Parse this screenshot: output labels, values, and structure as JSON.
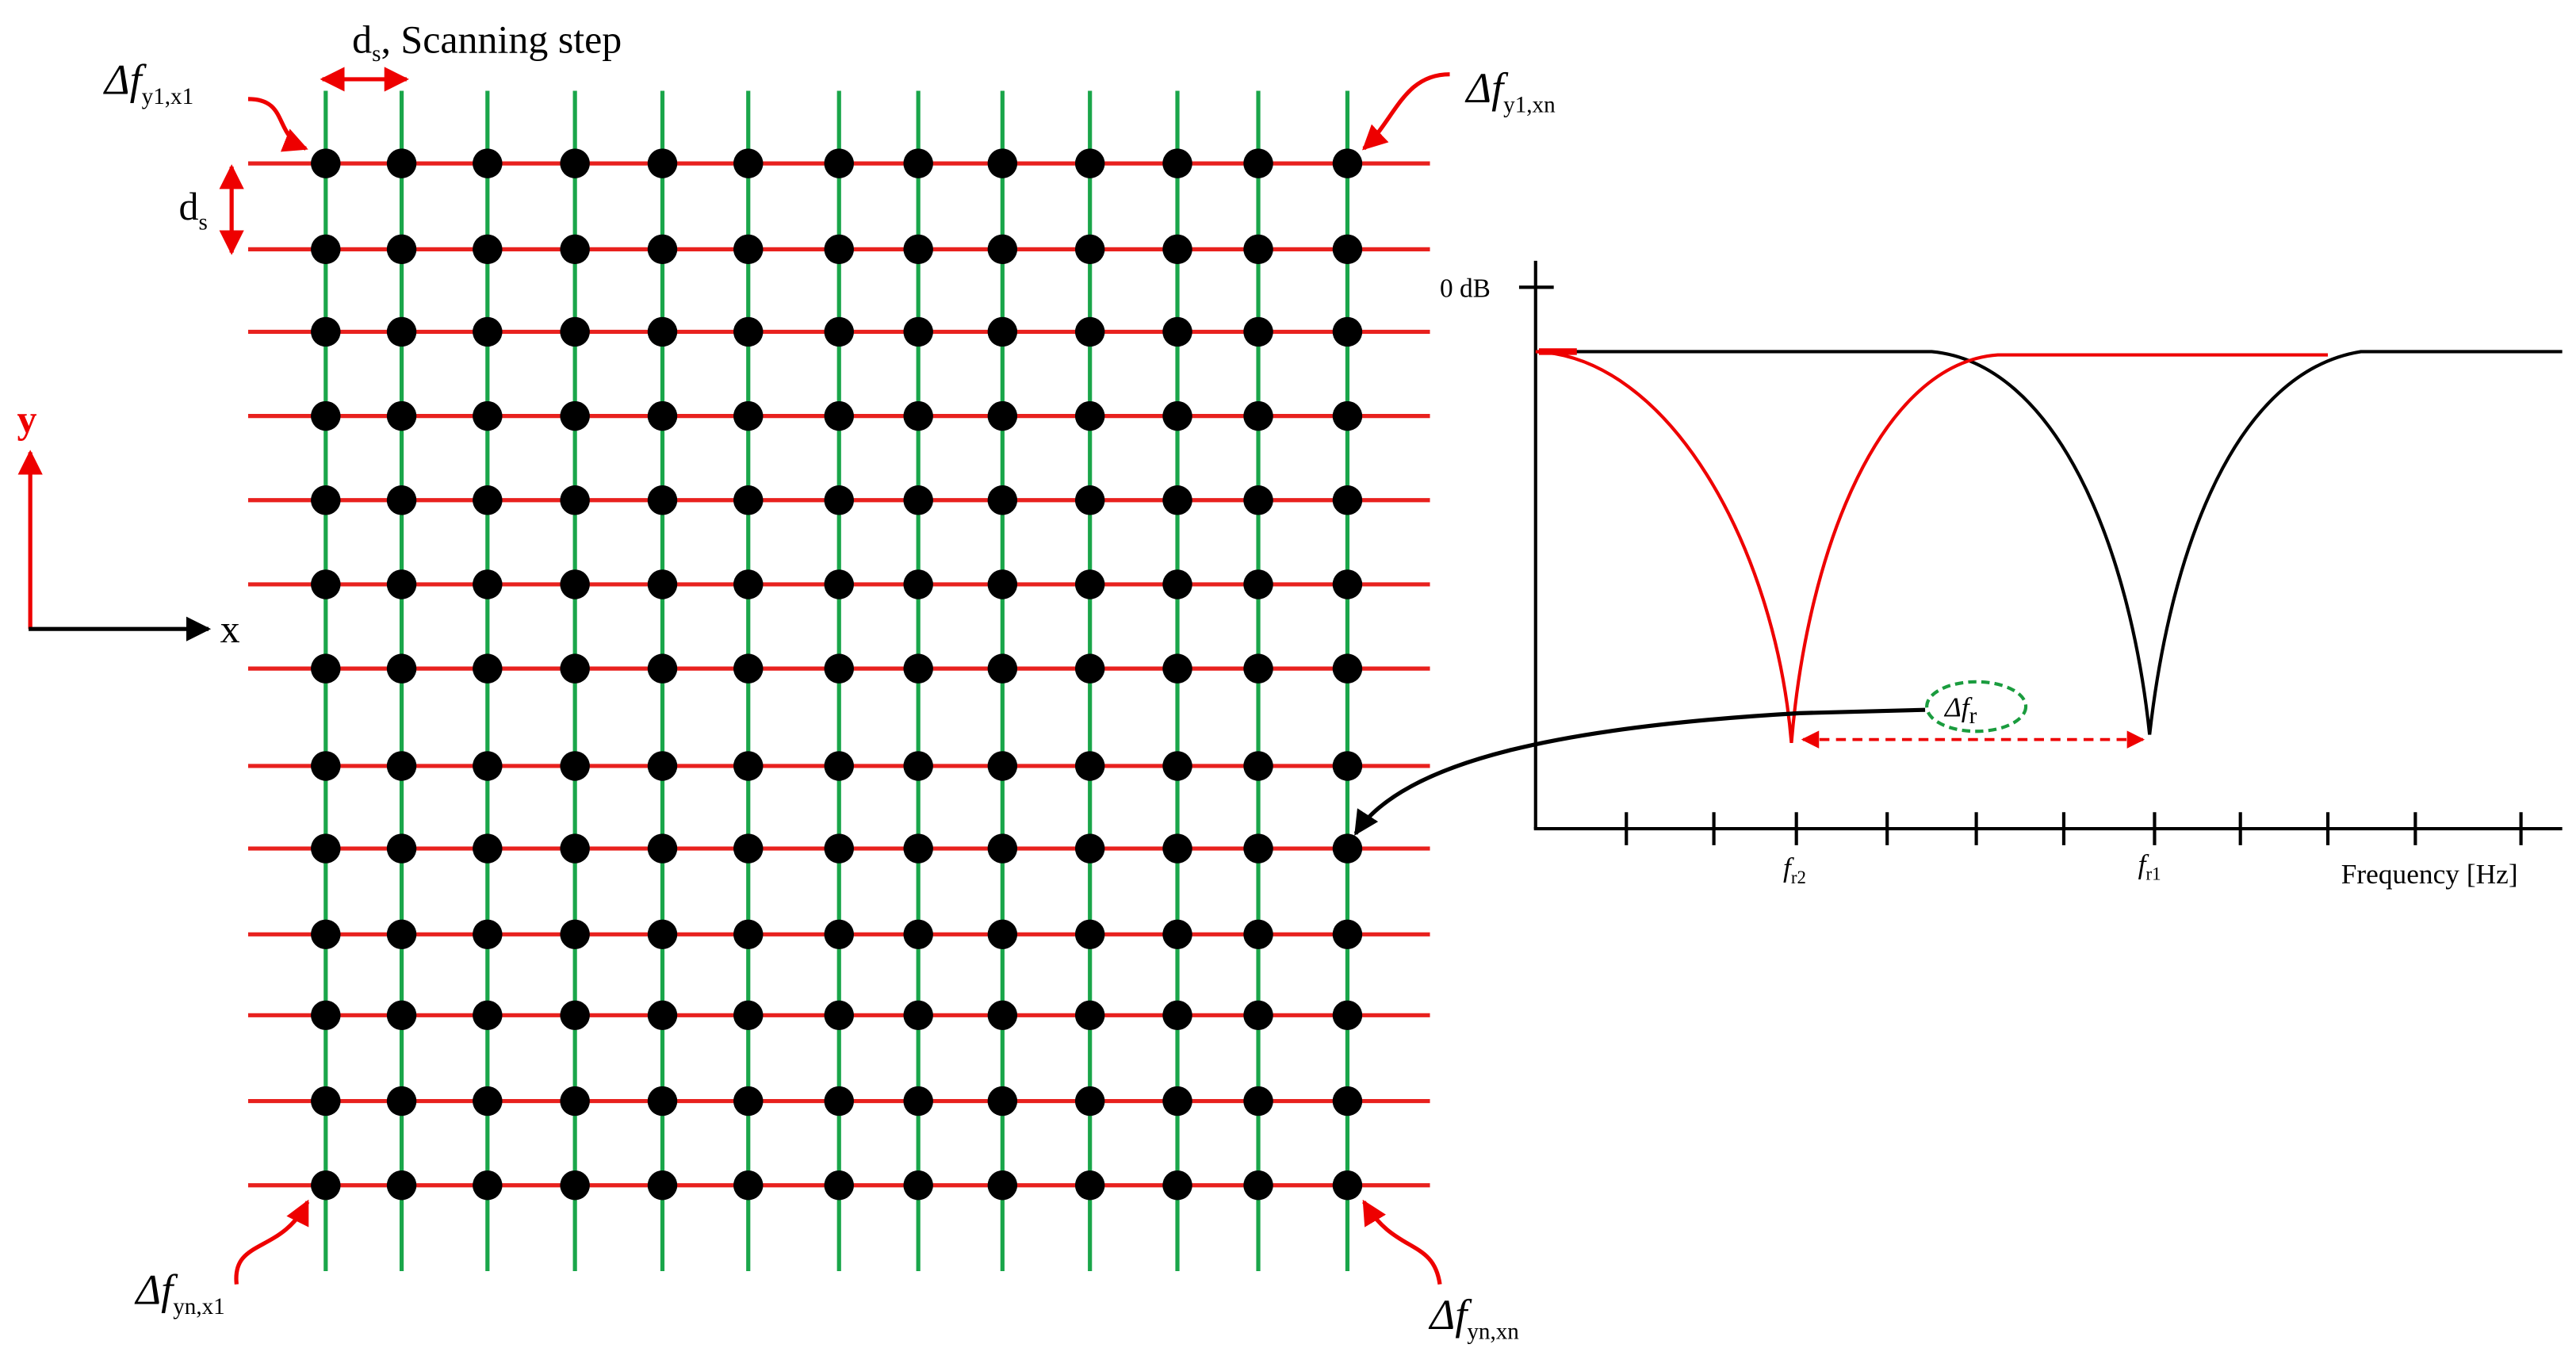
{
  "scan_step": {
    "symbol": "d",
    "subscript": "s",
    "text": ", Scanning step"
  },
  "step_label": {
    "symbol": "d",
    "subscript": "s"
  },
  "corners": {
    "top_left": {
      "symbol": "Δf",
      "subscript": "y1,x1"
    },
    "top_right": {
      "symbol": "Δf",
      "subscript": "y1,xn"
    },
    "bottom_left": {
      "symbol": "Δf",
      "subscript": "yn,x1"
    },
    "bottom_right": {
      "symbol": "Δf",
      "subscript": "yn,xn"
    }
  },
  "axes": {
    "x": "x",
    "y": "y"
  },
  "spectrum": {
    "level": "0 dB",
    "x_label": "Frequency [Hz]",
    "resonance_2": {
      "symbol": "f",
      "subscript": "r2"
    },
    "resonance_1": {
      "symbol": "f",
      "subscript": "r1"
    },
    "shift": {
      "symbol": "Δf",
      "subscript": "r"
    }
  }
}
